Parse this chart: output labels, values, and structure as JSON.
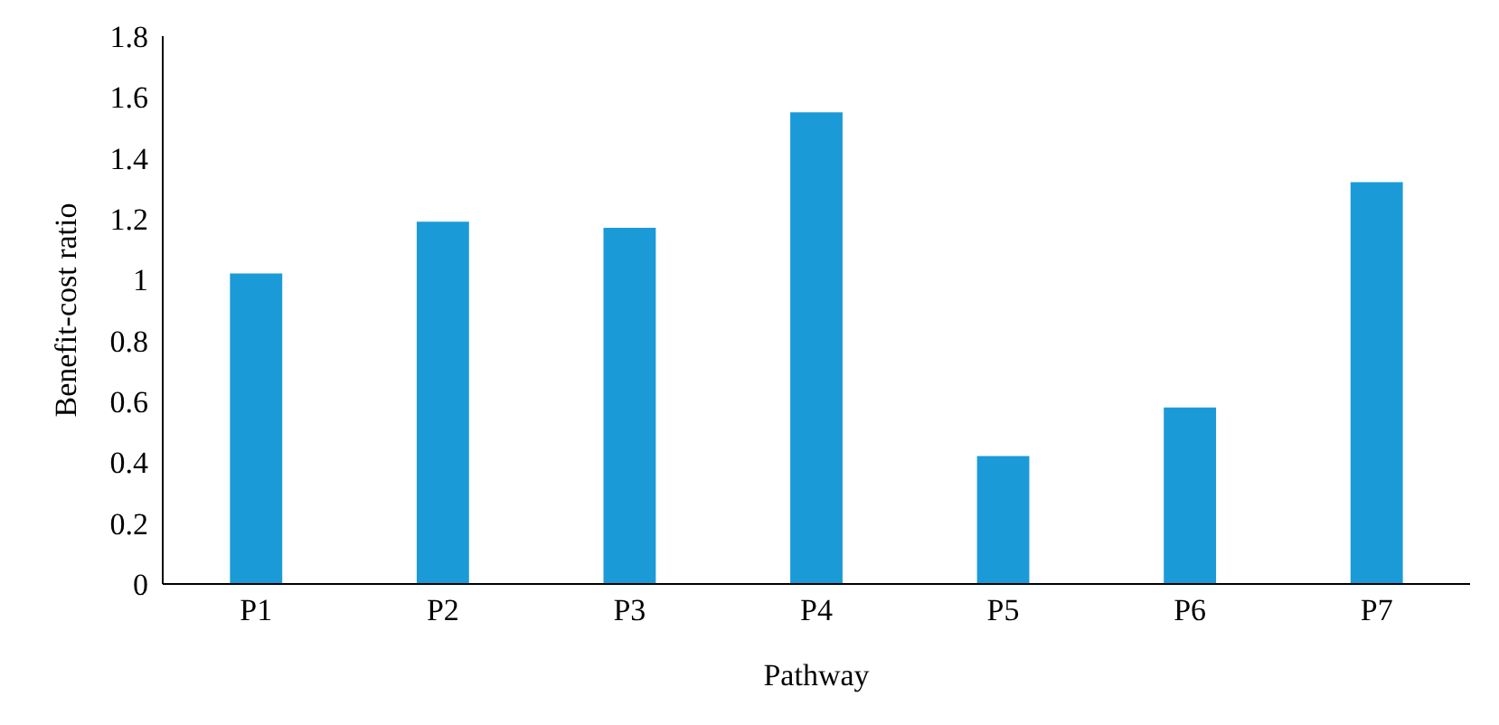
{
  "chart_data": {
    "type": "bar",
    "xlabel": "Pathway",
    "ylabel": "Benefit-cost ratio",
    "categories": [
      "P1",
      "P2",
      "P3",
      "P4",
      "P5",
      "P6",
      "P7"
    ],
    "values": [
      1.02,
      1.19,
      1.17,
      1.55,
      0.42,
      0.58,
      1.32
    ],
    "color": "#1a9bd7",
    "ylim": [
      0,
      1.8
    ],
    "yticks": [
      0,
      0.2,
      0.4,
      0.6,
      0.8,
      1,
      1.2,
      1.4,
      1.6,
      1.8
    ],
    "grid": false
  }
}
